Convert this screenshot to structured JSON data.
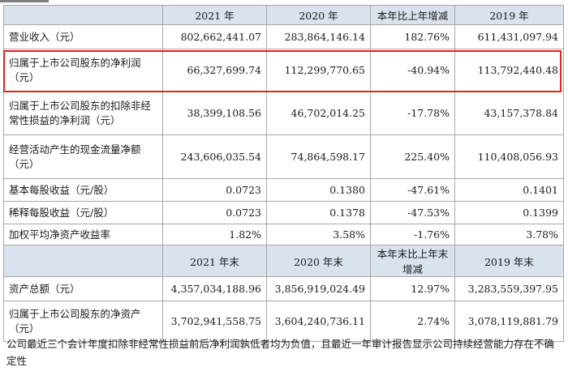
{
  "header1": {
    "c1": "2021 年",
    "c2": "2020 年",
    "c3": "本年比上年增减",
    "c4": "2019 年"
  },
  "rows1": [
    {
      "label": "营业收入（元）",
      "v1": "802,662,441.07",
      "v2": "283,864,146.14",
      "v3": "182.76%",
      "v4": "611,431,097.94"
    },
    {
      "label": "归属于上市公司股东的净利润（元）",
      "v1": "66,327,699.74",
      "v2": "112,299,770.65",
      "v3": "-40.94%",
      "v4": "113,792,440.48"
    },
    {
      "label": "归属于上市公司股东的扣除非经常性损益的净利润（元）",
      "v1": "38,399,108.56",
      "v2": "46,702,014.25",
      "v3": "-17.78%",
      "v4": "43,157,378.84"
    },
    {
      "label": "经营活动产生的现金流量净额（元）",
      "v1": "243,606,035.54",
      "v2": "74,864,598.17",
      "v3": "225.40%",
      "v4": "110,408,056.93"
    },
    {
      "label": "基本每股收益（元/股）",
      "v1": "0.0723",
      "v2": "0.1380",
      "v3": "-47.61%",
      "v4": "0.1401"
    },
    {
      "label": "稀释每股收益（元/股）",
      "v1": "0.0723",
      "v2": "0.1378",
      "v3": "-47.53%",
      "v4": "0.1399"
    },
    {
      "label": "加权平均净资产收益率",
      "v1": "1.82%",
      "v2": "3.58%",
      "v3": "-1.76%",
      "v4": "3.78%"
    }
  ],
  "header2": {
    "c1": "2021 年末",
    "c2": "2020 年末",
    "c3": "本年末比上年末增减",
    "c4": "2019 年末"
  },
  "rows2": [
    {
      "label": "资产总额（元）",
      "v1": "4,357,034,188.96",
      "v2": "3,856,919,024.49",
      "v3": "12.97%",
      "v4": "3,283,559,397.95"
    },
    {
      "label": "归属于上市公司股东的净资产（元）",
      "v1": "3,702,941,558.75",
      "v2": "3,604,240,736.11",
      "v3": "2.74%",
      "v4": "3,078,119,881.79"
    }
  ],
  "note": "公司最近三个会计年度扣除非经常性损益前后净利润孰低者均为负值，且最近一年审计报告显示公司持续经营能力存在不确定性",
  "colors": {
    "header_bg": "#d9e3ee",
    "highlight": "#e02424"
  }
}
